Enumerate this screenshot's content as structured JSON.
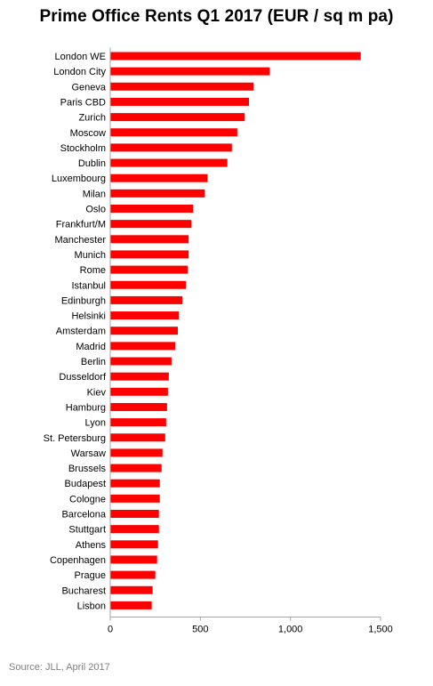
{
  "chart_data": {
    "type": "bar",
    "orientation": "horizontal",
    "title": "Prime Office Rents Q1 2017 (EUR / sq m pa)",
    "categories": [
      "London WE",
      "London City",
      "Geneva",
      "Paris CBD",
      "Zurich",
      "Moscow",
      "Stockholm",
      "Dublin",
      "Luxembourg",
      "Milan",
      "Oslo",
      "Frankfurt/M",
      "Manchester",
      "Munich",
      "Rome",
      "Istanbul",
      "Edinburgh",
      "Helsinki",
      "Amsterdam",
      "Madrid",
      "Berlin",
      "Dusseldorf",
      "Kiev",
      "Hamburg",
      "Lyon",
      "St. Petersburg",
      "Warsaw",
      "Brussels",
      "Budapest",
      "Cologne",
      "Barcelona",
      "Stuttgart",
      "Athens",
      "Copenhagen",
      "Prague",
      "Bucharest",
      "Lisbon"
    ],
    "values": [
      1390,
      885,
      795,
      770,
      745,
      705,
      675,
      650,
      540,
      525,
      460,
      450,
      435,
      435,
      430,
      420,
      400,
      380,
      375,
      360,
      340,
      325,
      320,
      315,
      310,
      305,
      290,
      285,
      275,
      275,
      270,
      270,
      265,
      260,
      250,
      235,
      230
    ],
    "xlim": [
      0,
      1500
    ],
    "xticks": [
      0,
      500,
      1000,
      1500
    ],
    "xtick_labels": [
      "0",
      "500",
      "1,000",
      "1,500"
    ],
    "bar_color": "#ff0000",
    "grid": false,
    "legend": "none"
  },
  "footer": {
    "source": "Source: JLL, April 2017"
  }
}
